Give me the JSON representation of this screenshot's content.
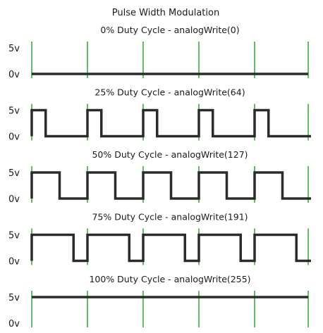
{
  "title": "Pulse Width Modulation",
  "level_labels": {
    "high": "5v",
    "low": "0v"
  },
  "colors": {
    "waveform": "#2b2b2b",
    "period_marker": "#1fa31f",
    "text": "#1a1a1a",
    "background": "#ffffff"
  },
  "periods_shown": 5,
  "panels": [
    {
      "title": "0% Duty Cycle - analogWrite(0)",
      "duty": 0.0
    },
    {
      "title": "25% Duty Cycle - analogWrite(64)",
      "duty": 0.25
    },
    {
      "title": "50% Duty Cycle - analogWrite(127)",
      "duty": 0.5
    },
    {
      "title": "75% Duty Cycle - analogWrite(191)",
      "duty": 0.75
    },
    {
      "title": "100% Duty Cycle - analogWrite(255)",
      "duty": 1.0
    }
  ]
}
